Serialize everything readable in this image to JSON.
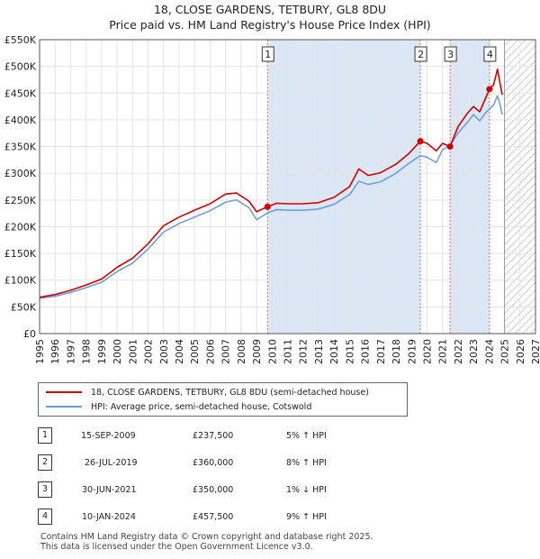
{
  "title_line1": "18, CLOSE GARDENS, TETBURY, GL8 8DU",
  "title_line2": "Price paid vs. HM Land Registry's House Price Index (HPI)",
  "legend": {
    "property": "18, CLOSE GARDENS, TETBURY, GL8 8DU (semi-detached house)",
    "hpi": "HPI: Average price, semi-detached house, Cotswold"
  },
  "colors": {
    "property": "#cc0000",
    "hpi": "#6a9bd8",
    "band": "#dce7f5",
    "vline": "#e06666"
  },
  "sales": [
    {
      "num": "1",
      "date": "15-SEP-2009",
      "price": "£237,500",
      "hpi": "5% ↑ HPI"
    },
    {
      "num": "2",
      "date": "26-JUL-2019",
      "price": "£360,000",
      "hpi": "8% ↑ HPI"
    },
    {
      "num": "3",
      "date": "30-JUN-2021",
      "price": "£350,000",
      "hpi": "1% ↓ HPI"
    },
    {
      "num": "4",
      "date": "10-JAN-2024",
      "price": "£457,500",
      "hpi": "9% ↑ HPI"
    }
  ],
  "footer_line1": "Contains HM Land Registry data © Crown copyright and database right 2025.",
  "footer_line2": "This data is licensed under the Open Government Licence v3.0.",
  "chart_data": {
    "type": "line",
    "title": "18, CLOSE GARDENS, TETBURY, GL8 8DU — Price paid vs. HM Land Registry's House Price Index (HPI)",
    "xlim": [
      1995,
      2027
    ],
    "ylim": [
      0,
      550000
    ],
    "x_ticks": [
      1995,
      1996,
      1997,
      1998,
      1999,
      2000,
      2001,
      2002,
      2003,
      2004,
      2005,
      2006,
      2007,
      2008,
      2009,
      2010,
      2011,
      2012,
      2013,
      2014,
      2015,
      2016,
      2017,
      2018,
      2019,
      2020,
      2021,
      2022,
      2023,
      2024,
      2025,
      2026,
      2027
    ],
    "y_ticks": [
      {
        "value": 0,
        "label": "£0"
      },
      {
        "value": 50000,
        "label": "£50K"
      },
      {
        "value": 100000,
        "label": "£100K"
      },
      {
        "value": 150000,
        "label": "£150K"
      },
      {
        "value": 200000,
        "label": "£200K"
      },
      {
        "value": 250000,
        "label": "£250K"
      },
      {
        "value": 300000,
        "label": "£300K"
      },
      {
        "value": 350000,
        "label": "£350K"
      },
      {
        "value": 400000,
        "label": "£400K"
      },
      {
        "value": 450000,
        "label": "£450K"
      },
      {
        "value": 500000,
        "label": "£500K"
      },
      {
        "value": 550000,
        "label": "£550K"
      }
    ],
    "future_from": 2025.0,
    "series": [
      {
        "name": "18, CLOSE GARDENS, TETBURY, GL8 8DU (semi-detached house)",
        "x": [
          1995.0,
          1996.0,
          1997.0,
          1998.0,
          1999.0,
          2000.0,
          2001.0,
          2002.0,
          2003.0,
          2004.0,
          2005.0,
          2006.0,
          2007.0,
          2007.7,
          2008.5,
          2009.0,
          2009.71,
          2010.3,
          2011.0,
          2012.0,
          2013.0,
          2014.0,
          2015.0,
          2015.6,
          2016.2,
          2017.0,
          2018.0,
          2018.8,
          2019.57,
          2020.0,
          2020.6,
          2021.0,
          2021.49,
          2022.0,
          2022.6,
          2023.0,
          2023.4,
          2023.8,
          2024.03,
          2024.3,
          2024.55,
          2024.7,
          2024.85
        ],
        "y": [
          68000,
          73000,
          81000,
          91000,
          102000,
          124000,
          141000,
          168000,
          202000,
          218000,
          231000,
          243000,
          261000,
          263000,
          248000,
          228000,
          237500,
          244000,
          243000,
          243000,
          245000,
          255000,
          275000,
          308000,
          296000,
          301000,
          317000,
          336000,
          360000,
          356000,
          342000,
          356000,
          350000,
          387000,
          412000,
          425000,
          415000,
          442000,
          457500,
          466000,
          495000,
          470000,
          447000
        ]
      },
      {
        "name": "HPI: Average price, semi-detached house, Cotswold",
        "x": [
          1995.0,
          1996.0,
          1997.0,
          1998.0,
          1999.0,
          2000.0,
          2001.0,
          2002.0,
          2003.0,
          2004.0,
          2005.0,
          2006.0,
          2007.0,
          2007.7,
          2008.5,
          2009.0,
          2009.71,
          2010.3,
          2011.0,
          2012.0,
          2013.0,
          2014.0,
          2015.0,
          2015.6,
          2016.2,
          2017.0,
          2018.0,
          2018.8,
          2019.57,
          2020.0,
          2020.6,
          2021.0,
          2021.49,
          2022.0,
          2022.6,
          2023.0,
          2023.4,
          2023.8,
          2024.03,
          2024.3,
          2024.55,
          2024.7,
          2024.85
        ],
        "y": [
          66000,
          70000,
          77000,
          86000,
          96000,
          116000,
          132000,
          158000,
          190000,
          206000,
          218000,
          230000,
          246000,
          250000,
          236000,
          213000,
          226000,
          232000,
          231000,
          231000,
          233000,
          242000,
          260000,
          285000,
          279000,
          284000,
          300000,
          318000,
          333000,
          330000,
          320000,
          344000,
          352000,
          375000,
          395000,
          410000,
          398000,
          414000,
          420000,
          428000,
          445000,
          430000,
          410000
        ]
      }
    ],
    "sales_points": [
      {
        "label": "1",
        "x": 2009.71,
        "y": 237500
      },
      {
        "label": "2",
        "x": 2019.57,
        "y": 360000
      },
      {
        "label": "3",
        "x": 2021.49,
        "y": 350000
      },
      {
        "label": "4",
        "x": 2024.03,
        "y": 457500
      }
    ]
  }
}
